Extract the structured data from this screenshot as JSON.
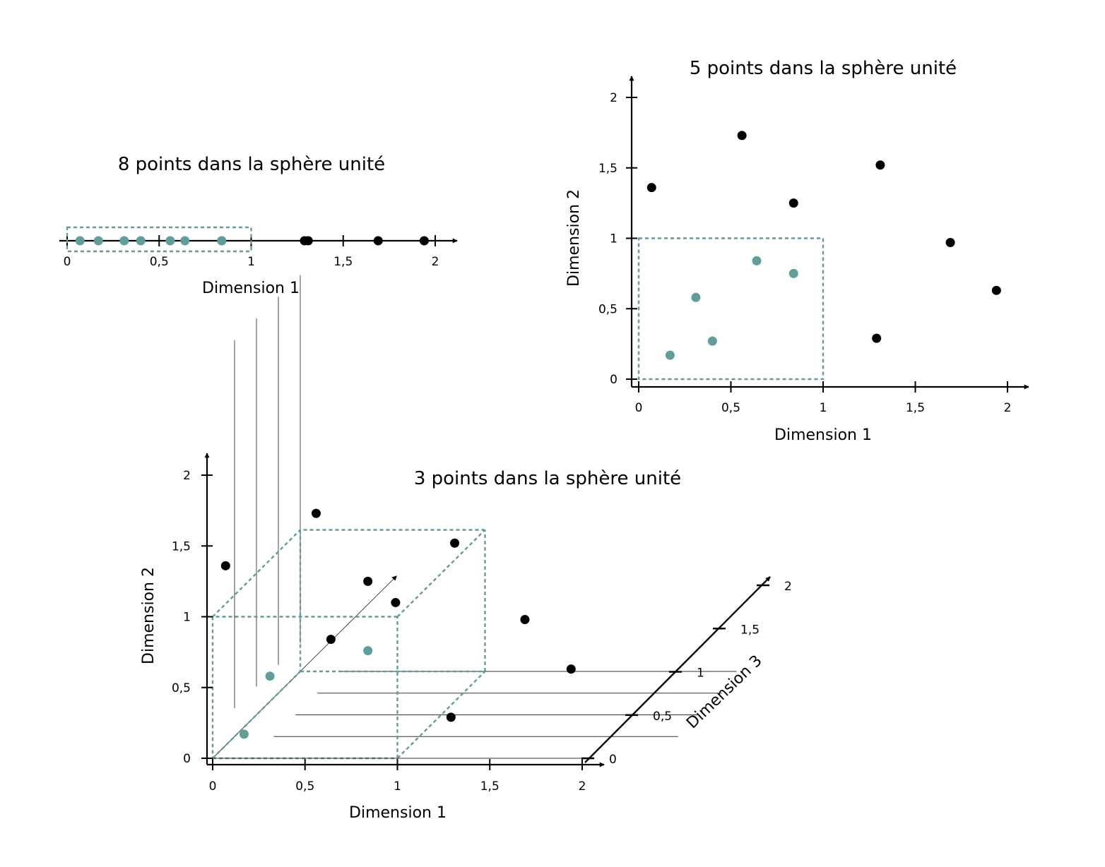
{
  "colors": {
    "inside": "#5f9e9a",
    "outside": "#000000",
    "box": "#5f9e9a",
    "axis": "#000000"
  },
  "chart_data": [
    {
      "type": "scatter",
      "id": "chart1d",
      "title": "8 points dans la sphère unité",
      "xlabel": "Dimension 1",
      "xlim": [
        0,
        2
      ],
      "xticks": [
        {
          "v": 0,
          "label": "0"
        },
        {
          "v": 0.5,
          "label": "0,5"
        },
        {
          "v": 1,
          "label": "1"
        },
        {
          "v": 1.5,
          "label": "1,5"
        },
        {
          "v": 2,
          "label": "2"
        }
      ],
      "unit_box": [
        1
      ],
      "points": [
        {
          "x": 0.07,
          "inside": true
        },
        {
          "x": 0.17,
          "inside": true
        },
        {
          "x": 0.31,
          "inside": true
        },
        {
          "x": 0.4,
          "inside": true
        },
        {
          "x": 0.56,
          "inside": true
        },
        {
          "x": 0.64,
          "inside": true
        },
        {
          "x": 0.84,
          "inside": true
        },
        {
          "x": 0.84,
          "inside": true
        },
        {
          "x": 1.29,
          "inside": false
        },
        {
          "x": 1.31,
          "inside": false
        },
        {
          "x": 1.69,
          "inside": false
        },
        {
          "x": 1.94,
          "inside": false
        }
      ]
    },
    {
      "type": "scatter",
      "id": "chart2d",
      "title": "5 points dans la sphère unité",
      "xlabel": "Dimension 1",
      "ylabel": "Dimension 2",
      "xlim": [
        0,
        2
      ],
      "ylim": [
        0,
        2
      ],
      "xticks": [
        {
          "v": 0,
          "label": "0"
        },
        {
          "v": 0.5,
          "label": "0,5"
        },
        {
          "v": 1,
          "label": "1"
        },
        {
          "v": 1.5,
          "label": "1,5"
        },
        {
          "v": 2,
          "label": "2"
        }
      ],
      "yticks": [
        {
          "v": 0,
          "label": "0"
        },
        {
          "v": 0.5,
          "label": "0,5"
        },
        {
          "v": 1,
          "label": "1"
        },
        {
          "v": 1.5,
          "label": "1,5"
        },
        {
          "v": 2,
          "label": "2"
        }
      ],
      "unit_box": [
        1,
        1
      ],
      "points": [
        {
          "x": 0.07,
          "y": 1.36,
          "inside": false
        },
        {
          "x": 0.56,
          "y": 1.73,
          "inside": false
        },
        {
          "x": 1.31,
          "y": 1.52,
          "inside": false
        },
        {
          "x": 0.84,
          "y": 1.25,
          "inside": false
        },
        {
          "x": 1.69,
          "y": 0.97,
          "inside": false
        },
        {
          "x": 1.94,
          "y": 0.63,
          "inside": false
        },
        {
          "x": 1.29,
          "y": 0.29,
          "inside": false
        },
        {
          "x": 0.64,
          "y": 0.84,
          "inside": true
        },
        {
          "x": 0.84,
          "y": 0.75,
          "inside": true
        },
        {
          "x": 0.31,
          "y": 0.58,
          "inside": true
        },
        {
          "x": 0.4,
          "y": 0.27,
          "inside": true
        },
        {
          "x": 0.17,
          "y": 0.17,
          "inside": true
        }
      ]
    },
    {
      "type": "scatter3d",
      "id": "chart3d",
      "title": "3 points dans la sphère unité",
      "xlabel": "Dimension 1",
      "ylabel": "Dimension 2",
      "zlabel": "Dimension 3",
      "xlim": [
        0,
        2
      ],
      "ylim": [
        0,
        2
      ],
      "zlim": [
        0,
        2
      ],
      "xticks": [
        {
          "v": 0,
          "label": "0"
        },
        {
          "v": 0.5,
          "label": "0,5"
        },
        {
          "v": 1,
          "label": "1"
        },
        {
          "v": 1.5,
          "label": "1,5"
        },
        {
          "v": 2,
          "label": "2"
        }
      ],
      "yticks": [
        {
          "v": 0,
          "label": "0"
        },
        {
          "v": 0.5,
          "label": "0,5"
        },
        {
          "v": 1,
          "label": "1"
        },
        {
          "v": 1.5,
          "label": "1,5"
        },
        {
          "v": 2,
          "label": "2"
        }
      ],
      "zticks": [
        {
          "v": 0,
          "label": "0"
        },
        {
          "v": 0.5,
          "label": "0,5"
        },
        {
          "v": 1,
          "label": "1"
        },
        {
          "v": 1.5,
          "label": "1,5"
        },
        {
          "v": 2,
          "label": "2"
        }
      ],
      "unit_box": [
        1,
        1,
        1
      ],
      "points": [
        {
          "x": 0.07,
          "y": 1.36,
          "inside": false
        },
        {
          "x": 0.56,
          "y": 1.73,
          "inside": false
        },
        {
          "x": 1.31,
          "y": 1.52,
          "inside": false
        },
        {
          "x": 0.84,
          "y": 1.25,
          "inside": false
        },
        {
          "x": 0.99,
          "y": 1.1,
          "inside": false
        },
        {
          "x": 1.69,
          "y": 0.98,
          "inside": false
        },
        {
          "x": 0.64,
          "y": 0.84,
          "inside": false
        },
        {
          "x": 1.94,
          "y": 0.63,
          "inside": false
        },
        {
          "x": 1.29,
          "y": 0.29,
          "inside": false
        },
        {
          "x": 0.84,
          "y": 0.76,
          "inside": true
        },
        {
          "x": 0.31,
          "y": 0.58,
          "inside": true
        },
        {
          "x": 0.17,
          "y": 0.17,
          "inside": true
        }
      ]
    }
  ]
}
